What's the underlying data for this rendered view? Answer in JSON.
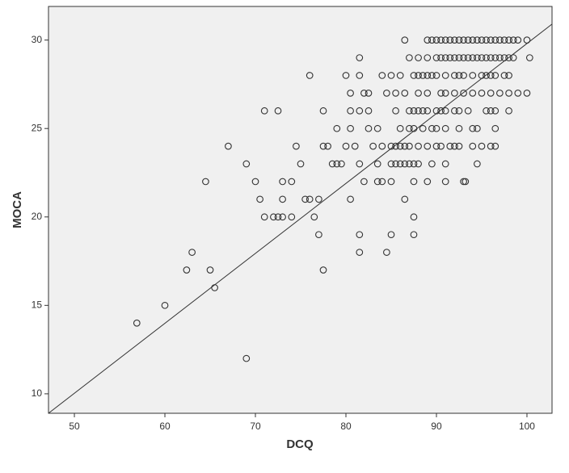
{
  "chart_data": {
    "type": "scatter",
    "x_label": "DCQ",
    "y_label": "MOCA",
    "xlim": [
      47.14,
      102.77
    ],
    "ylim": [
      8.9,
      31.9
    ],
    "xticks": [
      50,
      60,
      70,
      80,
      90,
      100
    ],
    "yticks": [
      10,
      15,
      20,
      25,
      30
    ],
    "color": "#333333",
    "background": "#f0f0f0",
    "fit_line": {
      "x": [
        47.14,
        102.77
      ],
      "y": [
        8.9,
        30.9
      ]
    },
    "x": [
      56.9,
      60,
      62.4,
      63,
      64.5,
      65,
      65.5,
      67,
      69,
      69,
      70,
      70.5,
      71,
      71,
      72,
      72.5,
      73,
      72.5,
      73,
      73,
      74,
      74,
      74.5,
      75,
      75.5,
      76,
      76,
      76.5,
      77,
      77,
      77.5,
      77.5,
      77.5,
      78,
      78.5,
      79,
      79,
      79.5,
      80,
      80,
      80.5,
      80.5,
      80.5,
      80.5,
      81,
      81.5,
      81.5,
      81.5,
      81.5,
      81.5,
      81.5,
      82,
      82,
      82.5,
      82.5,
      82.5,
      83,
      83.5,
      83.5,
      83.5,
      84,
      84,
      84,
      84.5,
      84.5,
      85,
      85,
      85,
      85,
      85,
      86.5,
      89,
      89.5,
      90,
      90.5,
      91,
      91.5,
      92,
      92.5,
      93,
      93.5,
      94,
      94.5,
      95,
      95.5,
      96,
      96.5,
      97,
      97.5,
      98,
      98.5,
      99,
      100,
      87,
      88,
      89,
      90,
      90.5,
      91,
      91.5,
      92,
      92.5,
      93,
      93.5,
      94,
      94.5,
      95,
      95.5,
      96,
      96.5,
      97,
      97.5,
      98,
      98.5,
      100.3,
      86,
      87.5,
      88,
      88.5,
      89,
      89.5,
      90,
      91,
      92,
      92.5,
      93,
      94,
      95,
      95.5,
      96,
      96.5,
      97.5,
      98,
      85.5,
      86.5,
      88,
      89,
      90.5,
      91,
      92,
      93,
      94,
      95,
      96,
      97,
      98,
      99,
      100,
      85.5,
      87,
      87.5,
      88,
      88.5,
      89,
      90,
      90.5,
      91,
      92,
      92.5,
      93.5,
      95.5,
      96,
      96.5,
      98,
      86,
      87,
      87.5,
      88.5,
      89.5,
      90,
      91,
      92.5,
      94,
      94.5,
      96.5,
      85.5,
      86,
      86.5,
      87,
      88,
      89,
      90,
      90.5,
      91.5,
      92,
      92.5,
      94,
      95,
      96,
      96.5,
      85.5,
      86,
      86.5,
      87,
      87.5,
      88,
      89.5,
      91,
      94.5,
      87.5,
      89,
      91,
      93,
      93.2,
      86.5,
      87.5,
      87.5
    ],
    "values": [
      14,
      15,
      17,
      18,
      22,
      17,
      16,
      24,
      23,
      12,
      22,
      21,
      26,
      20,
      20,
      20,
      20,
      26,
      22,
      21,
      22,
      20,
      24,
      23,
      21,
      21,
      28,
      20,
      21,
      19,
      26,
      17,
      24,
      24,
      23,
      25,
      23,
      23,
      28,
      24,
      21,
      27,
      26,
      25,
      24,
      29,
      28,
      26,
      23,
      19,
      18,
      22,
      27,
      27,
      26,
      25,
      24,
      25,
      23,
      22,
      28,
      24,
      22,
      18,
      27,
      28,
      24,
      23,
      22,
      19,
      30,
      30,
      30,
      30,
      30,
      30,
      30,
      30,
      30,
      30,
      30,
      30,
      30,
      30,
      30,
      30,
      30,
      30,
      30,
      30,
      30,
      30,
      30,
      29,
      29,
      29,
      29,
      29,
      29,
      29,
      29,
      29,
      29,
      29,
      29,
      29,
      29,
      29,
      29,
      29,
      29,
      29,
      29,
      29,
      29,
      28,
      28,
      28,
      28,
      28,
      28,
      28,
      28,
      28,
      28,
      28,
      28,
      28,
      28,
      28,
      28,
      28,
      28,
      27,
      27,
      27,
      27,
      27,
      27,
      27,
      27,
      27,
      27,
      27,
      27,
      27,
      27,
      27,
      26,
      26,
      26,
      26,
      26,
      26,
      26,
      26,
      26,
      26,
      26,
      26,
      26,
      26,
      26,
      26,
      25,
      25,
      25,
      25,
      25,
      25,
      25,
      25,
      25,
      25,
      25,
      24,
      24,
      24,
      24,
      24,
      24,
      24,
      24,
      24,
      24,
      24,
      24,
      24,
      24,
      24,
      23,
      23,
      23,
      23,
      23,
      23,
      23,
      23,
      23,
      22,
      22,
      22,
      22,
      22,
      21,
      20,
      19
    ]
  }
}
